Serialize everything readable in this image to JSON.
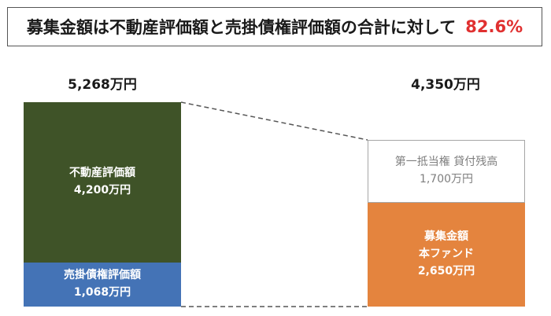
{
  "header": {
    "title": "募集金額は不動産評価額と売掛債権評価額の合計に対して",
    "ratio": "82.6%",
    "ratio_color": "#e03030"
  },
  "chart_data": {
    "type": "bar",
    "stacked": true,
    "categories": [
      "5,268万円",
      "4,350万円"
    ],
    "unit": "万円",
    "totals": {
      "left": "5,268万円",
      "right": "4,350万円"
    },
    "left_stack": [
      {
        "label": "売掛債権評価額",
        "value_label": "1,068万円",
        "value": 1068,
        "color": "#4473b6"
      },
      {
        "label": "不動産評価額",
        "value_label": "4,200万円",
        "value": 4200,
        "color": "#3f5328"
      }
    ],
    "right_stack": [
      {
        "label_line1": "募集金額",
        "label_line2": "本ファンド",
        "value_label": "2,650万円",
        "value": 2650,
        "color": "#e4843e"
      },
      {
        "label": "第一抵当権 貸付残高",
        "value_label": "1,700万円",
        "value": 1700,
        "color": "#ffffff",
        "border_color": "#a6a6a6"
      }
    ],
    "connector_style": "dashed"
  }
}
